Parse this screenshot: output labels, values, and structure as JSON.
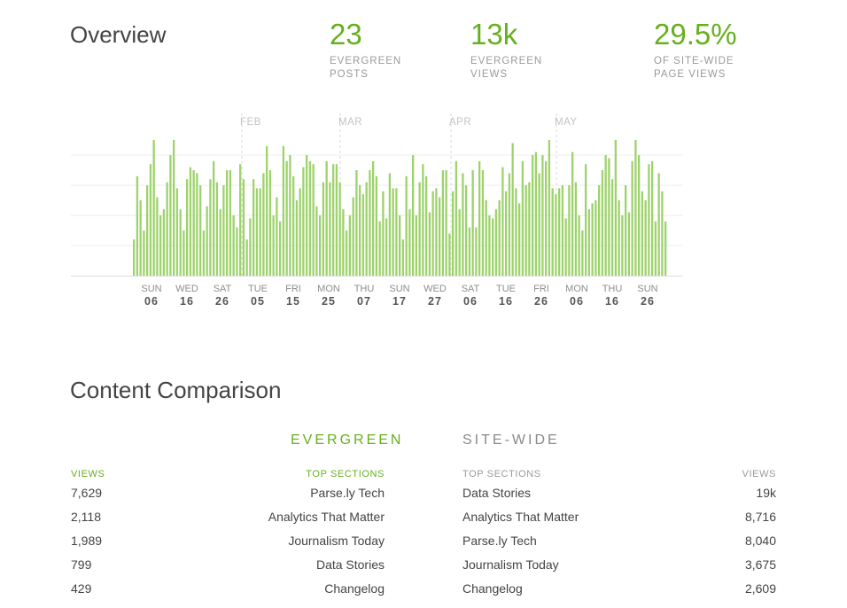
{
  "overview": {
    "title": "Overview",
    "metrics": [
      {
        "value": "23",
        "label_line1": "EVERGREEN",
        "label_line2": "POSTS"
      },
      {
        "value": "13k",
        "label_line1": "EVERGREEN",
        "label_line2": "VIEWS"
      },
      {
        "value": "29.5%",
        "label_line1": "OF SITE-WIDE",
        "label_line2": "PAGE VIEWS"
      }
    ]
  },
  "colors": {
    "accent": "#66b01e",
    "bar": "#9ed26c",
    "muted": "#999999"
  },
  "chart_data": {
    "type": "bar",
    "months": [
      "FEB",
      "MAR",
      "APR",
      "MAY"
    ],
    "day_ticks": [
      {
        "day": "SUN",
        "date": "06"
      },
      {
        "day": "WED",
        "date": "16"
      },
      {
        "day": "SAT",
        "date": "26"
      },
      {
        "day": "TUE",
        "date": "05"
      },
      {
        "day": "FRI",
        "date": "15"
      },
      {
        "day": "MON",
        "date": "25"
      },
      {
        "day": "THU",
        "date": "07"
      },
      {
        "day": "SUN",
        "date": "17"
      },
      {
        "day": "WED",
        "date": "27"
      },
      {
        "day": "SAT",
        "date": "06"
      },
      {
        "day": "TUE",
        "date": "16"
      },
      {
        "day": "FRI",
        "date": "26"
      },
      {
        "day": "MON",
        "date": "06"
      },
      {
        "day": "THU",
        "date": "16"
      },
      {
        "day": "SUN",
        "date": "26"
      }
    ],
    "values": [
      12,
      33,
      25,
      15,
      30,
      37,
      45,
      26,
      20,
      22,
      31,
      40,
      45,
      29,
      22,
      15,
      32,
      36,
      35,
      34,
      30,
      15,
      23,
      32,
      38,
      31,
      22,
      30,
      35,
      35,
      20,
      16,
      37,
      32,
      12,
      19,
      32,
      29,
      29,
      34,
      43,
      35,
      20,
      26,
      18,
      43,
      38,
      40,
      33,
      25,
      29,
      36,
      40,
      38,
      37,
      23,
      20,
      31,
      38,
      31,
      37,
      37,
      31,
      22,
      15,
      20,
      26,
      35,
      30,
      27,
      31,
      35,
      38,
      33,
      18,
      28,
      19,
      34,
      29,
      29,
      20,
      12,
      33,
      22,
      40,
      20,
      31,
      37,
      33,
      21,
      28,
      29,
      26,
      35,
      35,
      14,
      28,
      38,
      22,
      34,
      30,
      16,
      35,
      16,
      38,
      35,
      25,
      20,
      19,
      22,
      25,
      36,
      28,
      34,
      44,
      29,
      24,
      38,
      30,
      31,
      40,
      41,
      34,
      40,
      38,
      45,
      29,
      27,
      29,
      30,
      19,
      30,
      41,
      31,
      20,
      15,
      37,
      22,
      24,
      25,
      30,
      35,
      40,
      39,
      32,
      45,
      25,
      20,
      30,
      21,
      38,
      45,
      40,
      28,
      25,
      37,
      38,
      18,
      34,
      28,
      18
    ],
    "ylim": [
      0,
      50
    ],
    "grid": true
  },
  "comparison": {
    "title": "Content Comparison",
    "evergreen": {
      "heading": "EVERGREEN",
      "views_header": "VIEWS",
      "sections_header": "TOP SECTIONS",
      "rows": [
        {
          "views": "7,629",
          "section": "Parse.ly Tech"
        },
        {
          "views": "2,118",
          "section": "Analytics That Matter"
        },
        {
          "views": "1,989",
          "section": "Journalism Today"
        },
        {
          "views": "799",
          "section": "Data Stories"
        },
        {
          "views": "429",
          "section": "Changelog"
        }
      ]
    },
    "sitewide": {
      "heading": "SITE-WIDE",
      "sections_header": "TOP SECTIONS",
      "views_header": "VIEWS",
      "rows": [
        {
          "section": "Data Stories",
          "views": "19k"
        },
        {
          "section": "Analytics That Matter",
          "views": "8,716"
        },
        {
          "section": "Parse.ly Tech",
          "views": "8,040"
        },
        {
          "section": "Journalism Today",
          "views": "3,675"
        },
        {
          "section": "Changelog",
          "views": "2,609"
        }
      ]
    }
  }
}
